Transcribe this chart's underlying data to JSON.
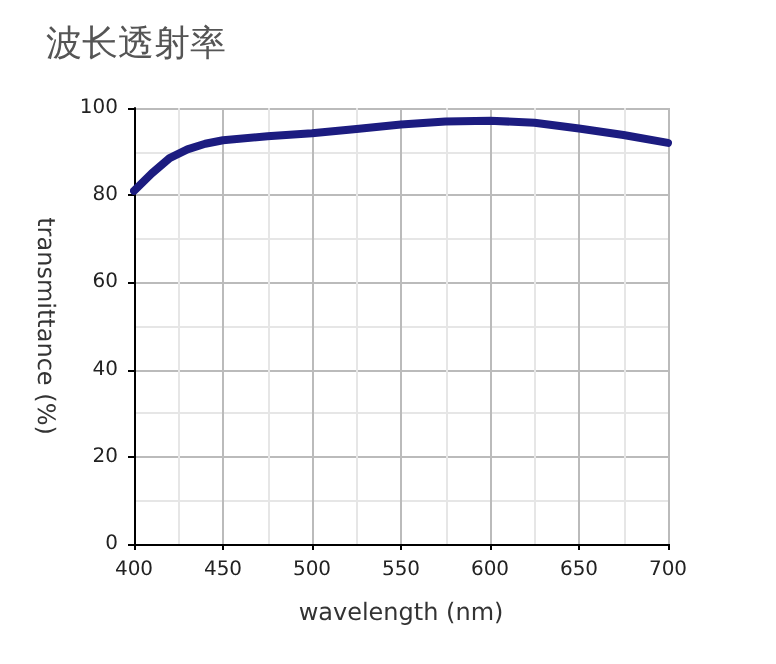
{
  "chart_data": {
    "type": "line",
    "title": "波长透射率",
    "xlabel": "wavelength (nm)",
    "ylabel": "transmittance (%)",
    "x": [
      400,
      410,
      420,
      430,
      440,
      450,
      475,
      500,
      525,
      550,
      575,
      600,
      625,
      650,
      675,
      700
    ],
    "series": [
      {
        "color": "#1c1c80",
        "values": [
          81,
          85,
          88.5,
          90.5,
          91.8,
          92.6,
          93.5,
          94.2,
          95.2,
          96.2,
          96.9,
          97.1,
          96.6,
          95.3,
          93.8,
          92
        ]
      }
    ],
    "xlim": [
      400,
      700
    ],
    "xticks": [
      400,
      450,
      500,
      550,
      600,
      650,
      700
    ],
    "ylim": [
      0,
      100
    ],
    "yticks": [
      0,
      20,
      40,
      60,
      80,
      100
    ],
    "grid": true,
    "marker": "none",
    "line_style": "solid"
  }
}
